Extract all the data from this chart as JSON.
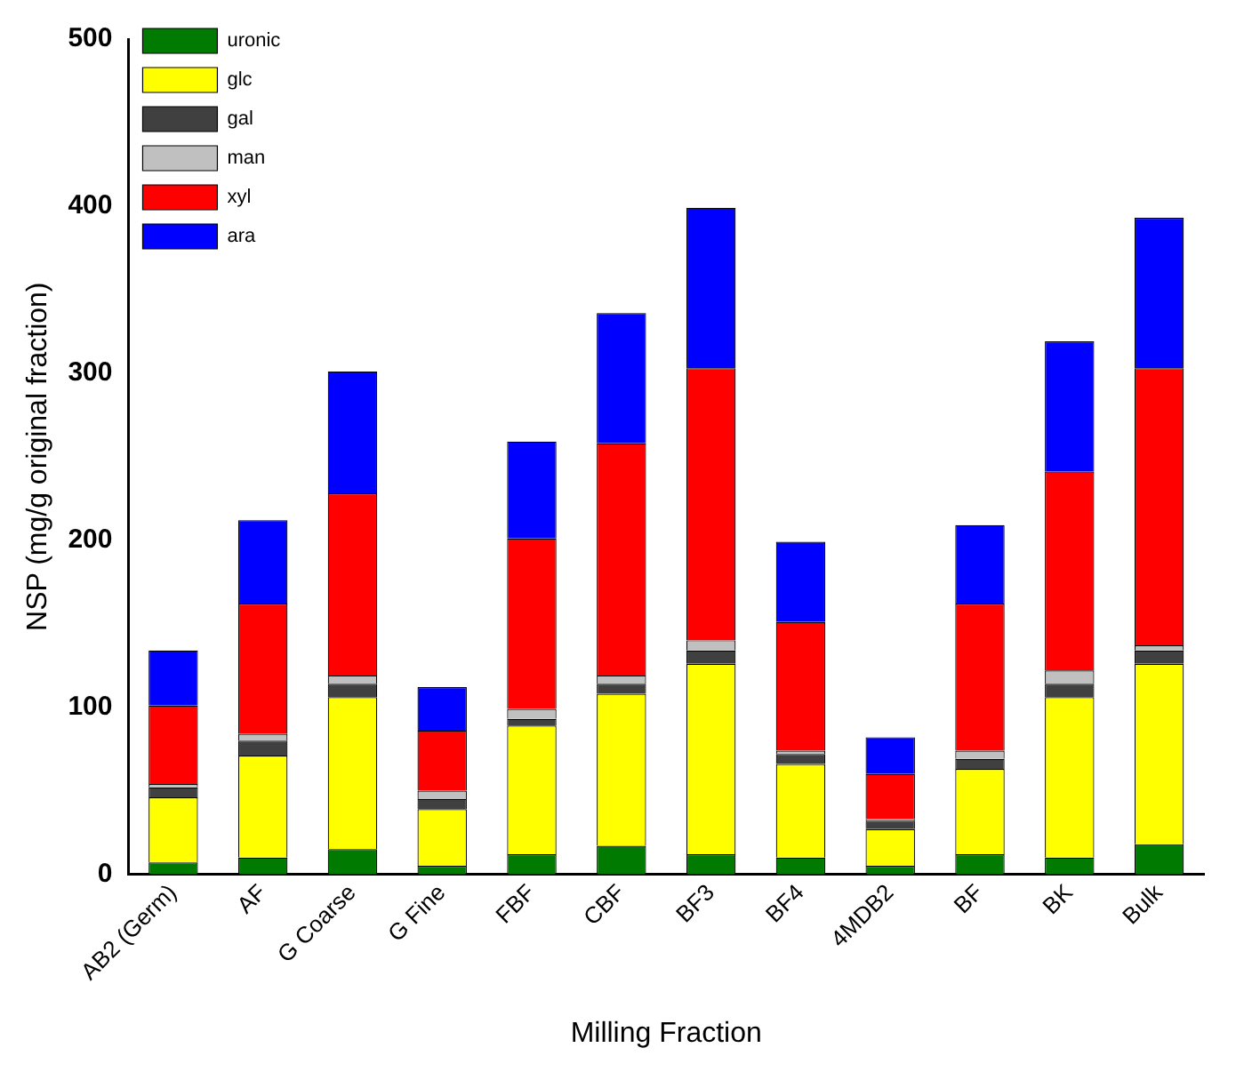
{
  "chart_data": {
    "type": "bar",
    "stacked": true,
    "xlabel": "Milling Fraction",
    "ylabel": "NSP (mg/g original fraction)",
    "categories": [
      "AB2 (Germ)",
      "AF",
      "G Coarse",
      "G Fine",
      "FBF",
      "CBF",
      "BF3",
      "BF4",
      "4MDB2",
      "BF",
      "BK",
      "Bulk"
    ],
    "series": [
      {
        "name": "uronic",
        "color": "#007a00",
        "values": [
          7,
          10,
          15,
          5,
          12,
          17,
          12,
          10,
          5,
          12,
          10,
          18
        ]
      },
      {
        "name": "glc",
        "color": "#ffff00",
        "values": [
          39,
          61,
          91,
          34,
          77,
          91,
          114,
          56,
          22,
          51,
          96,
          108
        ]
      },
      {
        "name": "gal",
        "color": "#404040",
        "values": [
          6,
          9,
          8,
          6,
          4,
          6,
          8,
          6,
          5,
          6,
          8,
          8
        ]
      },
      {
        "name": "man",
        "color": "#c0c0c0",
        "values": [
          2,
          4,
          5,
          5,
          6,
          5,
          6,
          2,
          1,
          5,
          8,
          3
        ]
      },
      {
        "name": "xyl",
        "color": "#ff0000",
        "values": [
          47,
          78,
          109,
          36,
          102,
          139,
          163,
          77,
          27,
          88,
          119,
          166
        ]
      },
      {
        "name": "ara",
        "color": "#0000ff",
        "values": [
          33,
          50,
          73,
          26,
          58,
          78,
          96,
          48,
          22,
          47,
          78,
          90
        ]
      }
    ],
    "ylim": [
      0,
      500
    ],
    "yticks": [
      0,
      100,
      200,
      300,
      400,
      500
    ],
    "grid": false,
    "legend": "top left"
  }
}
